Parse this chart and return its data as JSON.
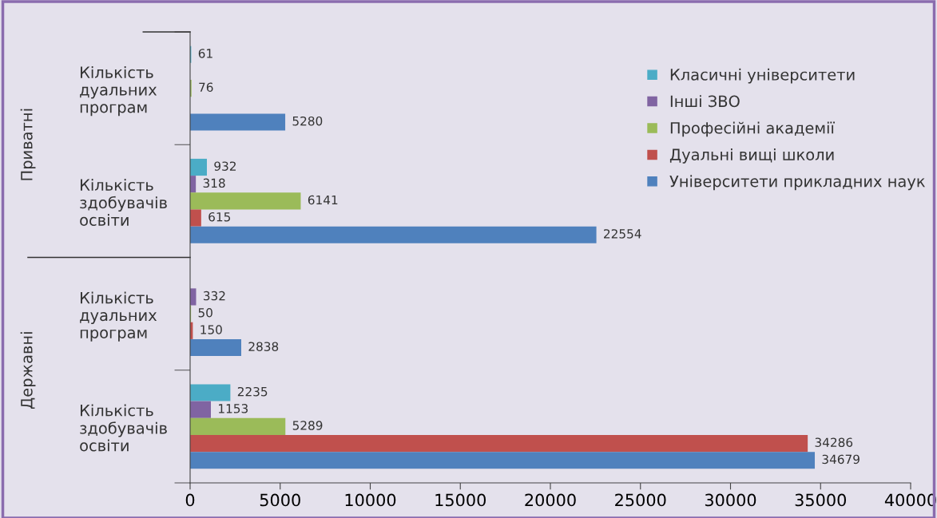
{
  "chart_data": {
    "type": "bar",
    "orientation": "horizontal",
    "categories": [
      "Кількість дуальних програм",
      "Кількість здобувачів освіти",
      "Кількість дуальних програм",
      "Кількість здобувачів освіти"
    ],
    "series": [
      {
        "name": "Класичні університети",
        "color": "#4bacc6",
        "values": [
          61,
          932,
          null,
          2235
        ]
      },
      {
        "name": "Інші ЗВО",
        "color": "#8064a2",
        "values": [
          null,
          318,
          332,
          1153
        ]
      },
      {
        "name": "Професійні академії",
        "color": "#9bbb59",
        "values": [
          76,
          6141,
          50,
          5289
        ]
      },
      {
        "name": "Дуальні вищі школи",
        "color": "#c0504d",
        "values": [
          null,
          615,
          150,
          34286
        ]
      },
      {
        "name": "Університети прикладних наук",
        "color": "#4f81bd",
        "values": [
          5280,
          22554,
          2838,
          34679
        ]
      }
    ],
    "annotations": [
      "Приватні",
      "Державні"
    ],
    "xlim": [
      0,
      40000
    ],
    "xticks": [
      0,
      5000,
      10000,
      15000,
      20000,
      25000,
      30000,
      35000,
      40000
    ],
    "data_labels": true,
    "legend": "top right",
    "grid": false
  }
}
